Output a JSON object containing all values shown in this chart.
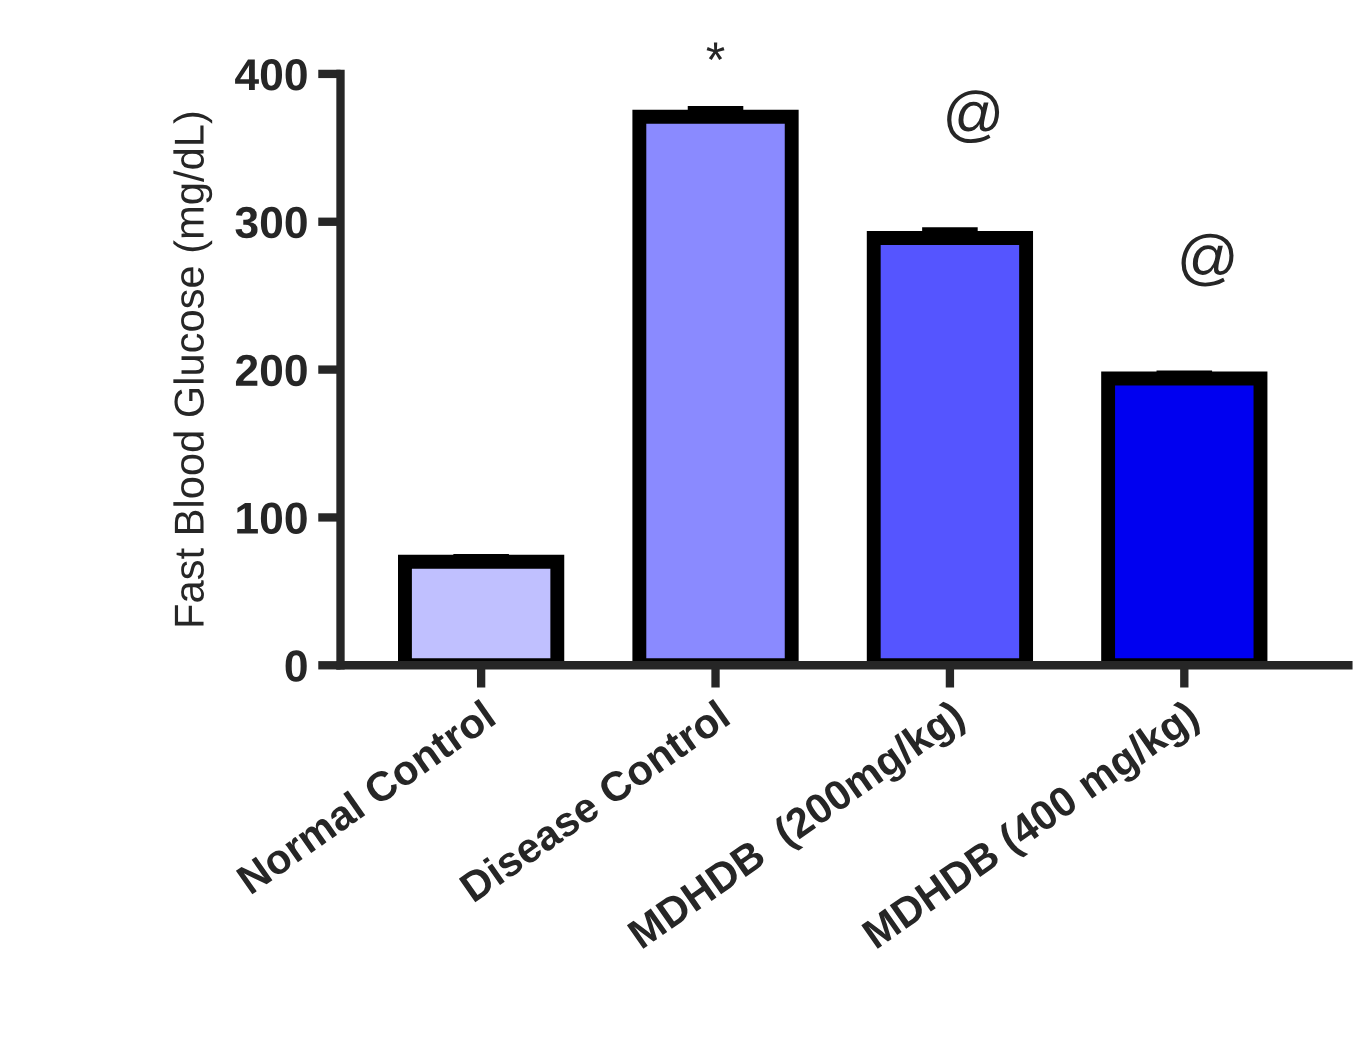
{
  "chart_data": {
    "type": "bar",
    "ylabel": "Fast Blood Glucose (mg/dL)",
    "categories": [
      "Normal Control",
      "Disease Control",
      "MDHDB  (200mg/kg)",
      "MDHDB (400 mg/kg)"
    ],
    "values": [
      70,
      371,
      289,
      194
    ],
    "errors": [
      3,
      5,
      5,
      3
    ],
    "colors": [
      "#c0c0ff",
      "#8a8aff",
      "#5555ff",
      "#0000f0"
    ],
    "ylim": [
      0,
      400
    ],
    "yticks": [
      0,
      100,
      200,
      300,
      400
    ],
    "grid": false,
    "legend": false,
    "annotations": [
      {
        "text": "*",
        "x": "Disease Control",
        "y": 376
      },
      {
        "text": "@",
        "x": "MDHDB  (200mg/kg)",
        "y": 294
      },
      {
        "text": "@",
        "x": "MDHDB (400 mg/kg)",
        "y": 197
      }
    ]
  }
}
